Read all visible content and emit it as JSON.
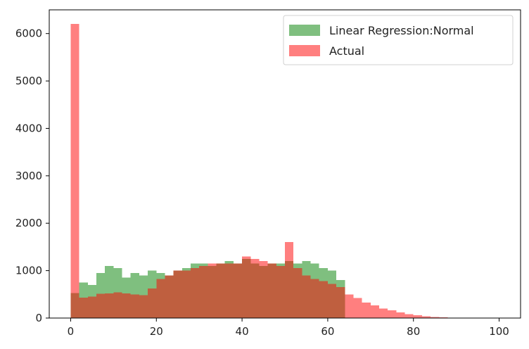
{
  "chart_data": {
    "type": "bar",
    "subtype": "overlaid-histogram",
    "title": "",
    "xlabel": "",
    "ylabel": "",
    "xlim": [
      -5,
      105
    ],
    "ylim": [
      0,
      6500
    ],
    "x_ticks": [
      0,
      20,
      40,
      60,
      80,
      100
    ],
    "y_ticks": [
      0,
      1000,
      2000,
      3000,
      4000,
      5000,
      6000
    ],
    "x_tick_labels": [
      "0",
      "20",
      "40",
      "60",
      "80",
      "100"
    ],
    "y_tick_labels": [
      "0",
      "1000",
      "2000",
      "3000",
      "4000",
      "5000",
      "6000"
    ],
    "bin_edges": [
      0,
      2,
      4,
      6,
      8,
      10,
      12,
      14,
      16,
      18,
      20,
      22,
      24,
      26,
      28,
      30,
      32,
      34,
      36,
      38,
      40,
      42,
      44,
      46,
      48,
      50,
      52,
      54,
      56,
      58,
      60,
      62,
      64,
      66,
      68,
      70,
      72,
      74,
      76,
      78,
      80,
      82,
      84,
      86,
      88,
      90,
      92,
      94,
      96,
      98,
      100
    ],
    "grid": false,
    "legend": {
      "position": "top-right",
      "entries": [
        "Linear Regression:Normal",
        "Actual"
      ]
    },
    "series": [
      {
        "name": "Linear Regression:Normal",
        "color": "#008000",
        "alpha": 0.5,
        "values": [
          530,
          750,
          700,
          950,
          1100,
          1050,
          850,
          950,
          900,
          1000,
          950,
          900,
          1000,
          1050,
          1150,
          1150,
          1100,
          1150,
          1200,
          1150,
          1250,
          1150,
          1100,
          1150,
          1150,
          1200,
          1150,
          1200,
          1150,
          1050,
          1000,
          800,
          0,
          0,
          0,
          0,
          0,
          0,
          0,
          0,
          0,
          0,
          0,
          0,
          0,
          0,
          0,
          0,
          0,
          0
        ]
      },
      {
        "name": "Actual",
        "color": "#ff0000",
        "alpha": 0.5,
        "values": [
          6200,
          430,
          450,
          510,
          520,
          540,
          520,
          500,
          480,
          620,
          820,
          900,
          1000,
          1000,
          1050,
          1100,
          1150,
          1150,
          1150,
          1150,
          1300,
          1250,
          1200,
          1150,
          1100,
          1600,
          1050,
          900,
          820,
          780,
          720,
          650,
          500,
          420,
          330,
          270,
          200,
          160,
          120,
          80,
          60,
          40,
          20,
          15,
          5,
          0,
          0,
          0,
          0,
          0
        ]
      }
    ]
  }
}
